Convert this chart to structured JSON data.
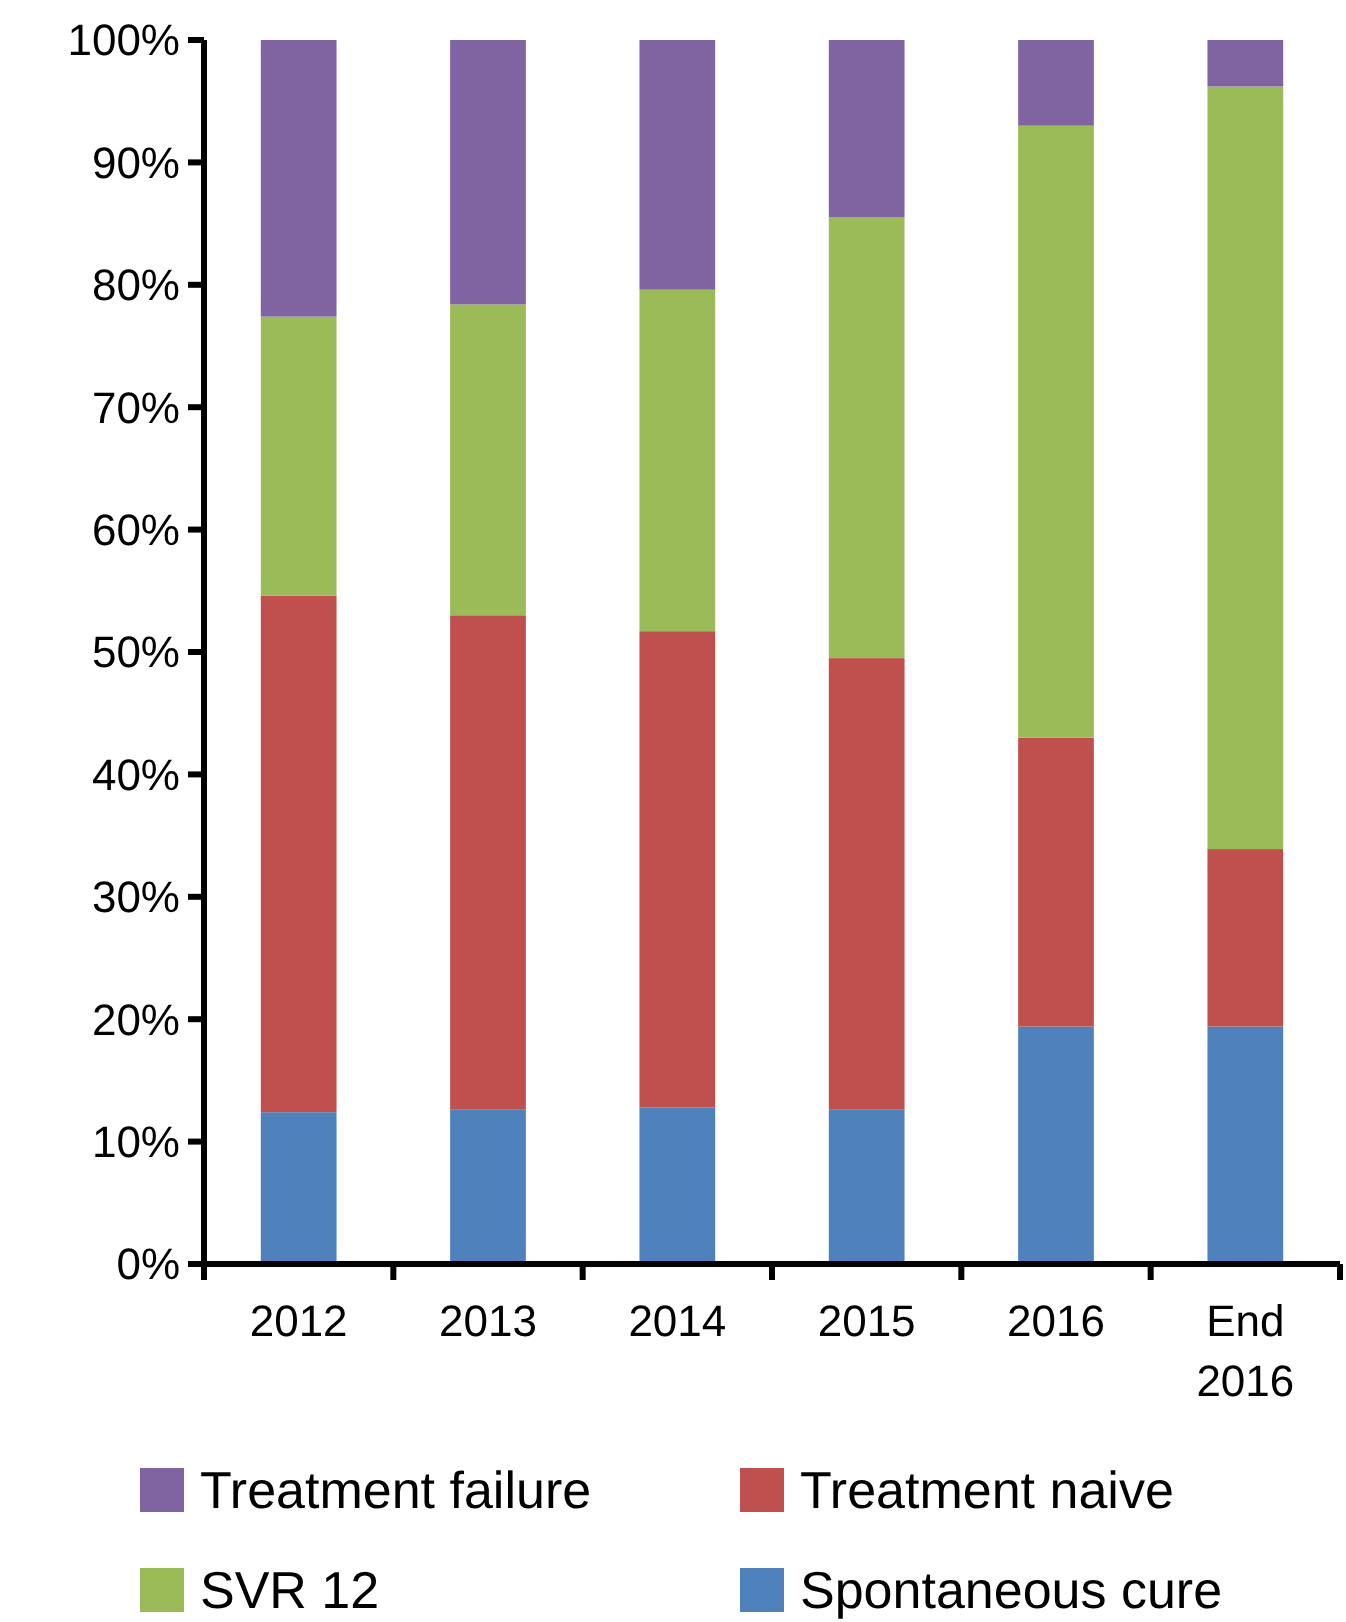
{
  "chart_data": {
    "type": "bar",
    "stacked": true,
    "categories": [
      "2012",
      "2013",
      "2014",
      "2015",
      "2016",
      "End 2016"
    ],
    "series": [
      {
        "name": "Spontaneous cure",
        "color": "#4f81bd",
        "values": [
          12.4,
          12.6,
          12.8,
          12.6,
          19.4,
          19.4
        ]
      },
      {
        "name": "Treatment naive",
        "color": "#c0504d",
        "values": [
          42.2,
          40.4,
          38.9,
          36.9,
          23.6,
          14.5
        ]
      },
      {
        "name": "SVR 12",
        "color": "#9bbb59",
        "values": [
          22.8,
          25.4,
          27.9,
          36.0,
          50.0,
          62.3
        ]
      },
      {
        "name": "Treatment failure",
        "color": "#8064a2",
        "values": [
          22.6,
          21.6,
          20.4,
          14.5,
          7.0,
          3.8
        ]
      }
    ],
    "ylim": [
      0,
      100
    ],
    "yticks": [
      {
        "value": 0,
        "label": "0%"
      },
      {
        "value": 10,
        "label": "10%"
      },
      {
        "value": 20,
        "label": "20%"
      },
      {
        "value": 30,
        "label": "30%"
      },
      {
        "value": 40,
        "label": "40%"
      },
      {
        "value": 50,
        "label": "50%"
      },
      {
        "value": 60,
        "label": "60%"
      },
      {
        "value": 70,
        "label": "70%"
      },
      {
        "value": 80,
        "label": "80%"
      },
      {
        "value": 90,
        "label": "90%"
      },
      {
        "value": 100,
        "label": "100%"
      }
    ],
    "grid": false,
    "legend": "bottom"
  }
}
